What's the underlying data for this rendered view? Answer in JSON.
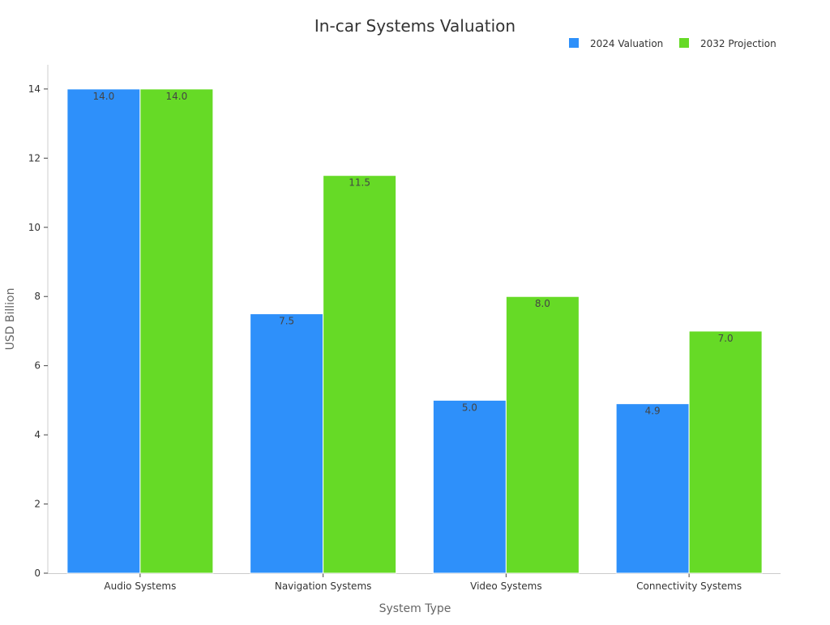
{
  "chart_data": {
    "type": "bar",
    "title": "In-car Systems Valuation",
    "xlabel": "System Type",
    "ylabel": "USD Billion",
    "categories": [
      "Audio Systems",
      "Navigation Systems",
      "Video Systems",
      "Connectivity Systems"
    ],
    "series": [
      {
        "name": "2024 Valuation",
        "values": [
          14.0,
          7.5,
          5.0,
          4.9
        ],
        "labels": [
          "14.0",
          "7.5",
          "5.0",
          "4.9"
        ],
        "color": "#2e90fa"
      },
      {
        "name": "2032 Projection",
        "values": [
          14.0,
          11.5,
          8.0,
          7.0
        ],
        "labels": [
          "14.0",
          "11.5",
          "8.0",
          "7.0"
        ],
        "color": "#66da26"
      }
    ],
    "ylim": [
      0,
      14.7
    ],
    "yticks": [
      0,
      2,
      4,
      6,
      8,
      10,
      12,
      14
    ],
    "legend_position": "top-right",
    "grid": false
  }
}
